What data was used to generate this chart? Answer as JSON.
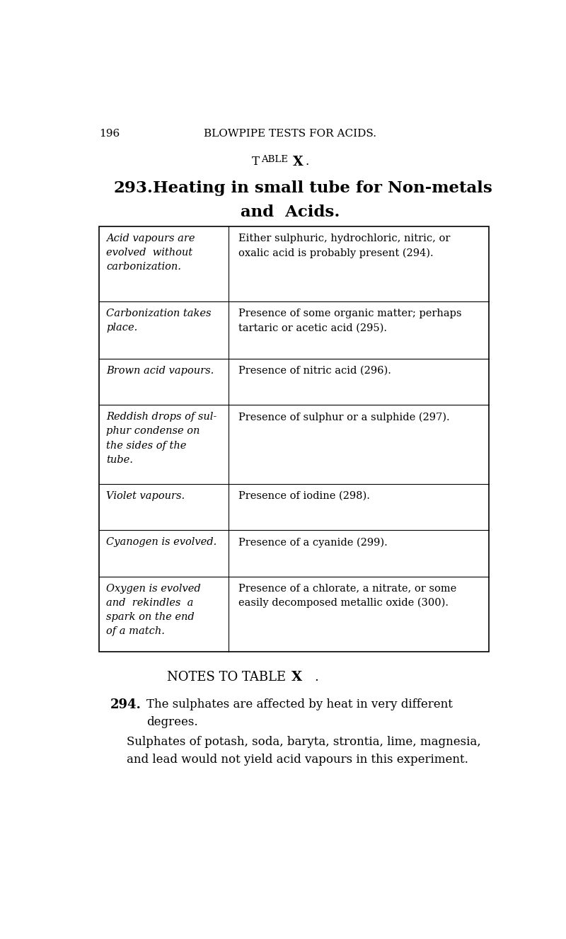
{
  "page_number": "196",
  "header": "BLOWPIPE TESTS FOR ACIDS.",
  "bg_color": "#ffffff",
  "text_color": "#000000",
  "table_left_texts": [
    "Acid vapours are\nevolved  without\ncarbonization.",
    "Carbonization takes\nplace.",
    "Brown acid vapours.",
    "Reddish drops of sul-\nphur condense on\nthe sides of the\ntube.",
    "Violet vapours.",
    "Cyanogen is evolved.",
    "Oxygen is evolved\nand  rekindles  a\nspark on the end\nof a match."
  ],
  "table_right_texts": [
    "Either sulphuric, hydrochloric, nitric, or\noxalic acid is probably present (294).",
    "Presence of some organic matter; perhaps\ntartaric or acetic acid (295).",
    "Presence of nitric acid (296).",
    "Presence of sulphur or a sulphide (297).",
    "Presence of iodine (298).",
    "Presence of a cyanide (299).",
    "Presence of a chlorate, a nitrate, or some\neasily decomposed metallic oxide (300)."
  ],
  "row_heights": [
    1.38,
    1.05,
    0.85,
    1.45,
    0.85,
    0.85,
    1.38
  ],
  "note_294_text": "The sulphates are affected by heat in very different\ndegrees.",
  "note_294b_text": "Sulphates of potash, soda, baryta, strontia, lime, magnesia,\nand lead would not yield acid vapours in this experiment."
}
